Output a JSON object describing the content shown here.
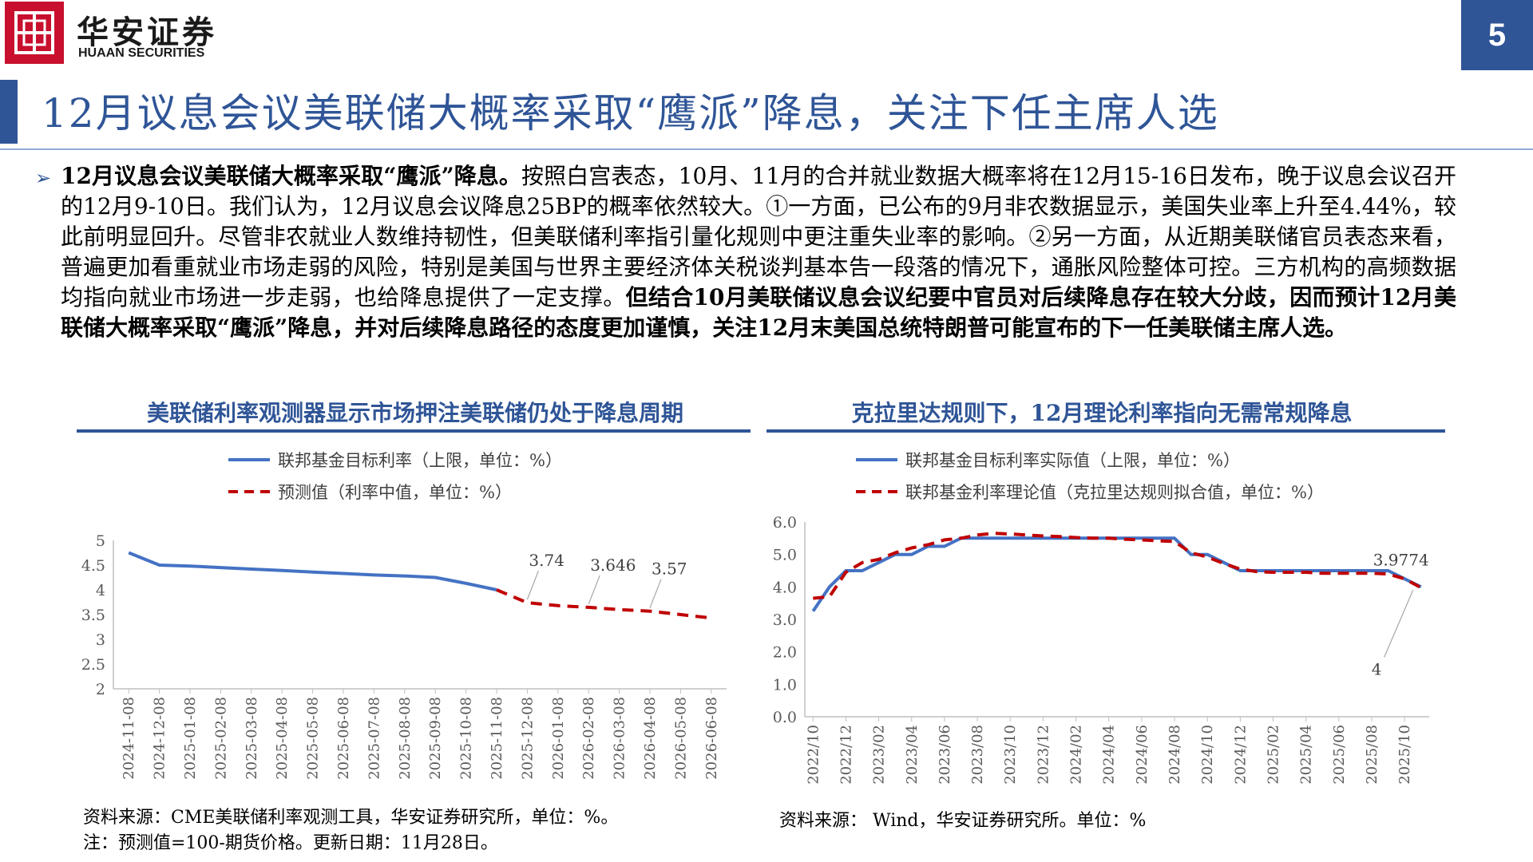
{
  "header": {
    "brand_cn": "华安证券",
    "brand_en": "HUAAN SECURITIES",
    "page_number": "5",
    "title": "12月议息会议美联储大概率采取“鹰派”降息，关注下任主席人选"
  },
  "paragraph": {
    "lead_bold": "12月议息会议美联储大概率采取“鹰派”降息。",
    "body": "按照白宫表态，10月、11月的合并就业数据大概率将在12月15-16日发布，晚于议息会议召开的12月9-10日。我们认为，12月议息会议降息25BP的概率依然较大。①一方面，已公布的9月非农数据显示，美国失业率上升至4.44%，较此前明显回升。尽管非农就业人数维持韧性，但美联储利率指引量化规则中更注重失业率的影响。②另一方面，从近期美联储官员表态来看，普遍更加看重就业市场走弱的风险，特别是美国与世界主要经济体关税谈判基本告一段落的情况下，通胀风险整体可控。三方机构的高频数据均指向就业市场进一步走弱，也给降息提供了一定支撑。",
    "tail_bold": "但结合10月美联储议息会议纪要中官员对后续降息存在较大分歧，因而预计12月美联储大概率采取“鹰派”降息，并对后续降息路径的态度更加谨慎，关注12月末美国总统特朗普可能宣布的下一任美联储主席人选。"
  },
  "left_chart": {
    "heading": "美联储利率观测器显示市场押注美联储仍处于降息周期",
    "source_line1": "资料来源：CME美联储利率观测工具，华安证券研究所，单位：%。",
    "source_line2": "注：预测值=100-期货价格。更新日期：11月28日。"
  },
  "right_chart": {
    "heading": "克拉里达规则下，12月理论利率指向无需常规降息",
    "source_line1": "资料来源： Wind，华安证券研究所。单位：%"
  },
  "chart_data": [
    {
      "type": "line",
      "categories": [
        "2024-11-08",
        "2024-12-08",
        "2025-01-08",
        "2025-02-08",
        "2025-03-08",
        "2025-04-08",
        "2025-05-08",
        "2025-06-08",
        "2025-07-08",
        "2025-08-08",
        "2025-09-08",
        "2025-10-08",
        "2025-11-08",
        "2025-12-08",
        "2026-01-08",
        "2026-02-08",
        "2026-03-08",
        "2026-04-08",
        "2026-05-08",
        "2026-06-08"
      ],
      "series": [
        {
          "name": "联邦基金目标利率（上限，单位：%）",
          "style": "solid",
          "color": "#4472c4",
          "values": [
            4.75,
            4.5,
            4.48,
            4.45,
            4.42,
            4.39,
            4.36,
            4.33,
            4.3,
            4.28,
            4.25,
            4.13,
            4.0,
            null,
            null,
            null,
            null,
            null,
            null,
            null
          ]
        },
        {
          "name": "预测值（利率中值，单位：%）",
          "style": "dashed",
          "color": "#c00000",
          "values": [
            null,
            null,
            null,
            null,
            null,
            null,
            null,
            null,
            null,
            null,
            null,
            null,
            4.0,
            3.74,
            3.68,
            3.646,
            3.6,
            3.57,
            3.5,
            3.43
          ]
        }
      ],
      "annotations": [
        {
          "label": "3.74",
          "index": 13,
          "value": 3.74
        },
        {
          "label": "3.646",
          "index": 15,
          "value": 3.646
        },
        {
          "label": "3.57",
          "index": 17,
          "value": 3.57
        }
      ],
      "y_ticks": [
        "5",
        "4.5",
        "4",
        "3.5",
        "3",
        "2.5",
        "2"
      ],
      "ylim": [
        2,
        5
      ],
      "legend_position": "top-left",
      "grid": false
    },
    {
      "type": "line",
      "categories": [
        "2022/10",
        "2022/11",
        "2022/12",
        "2023/01",
        "2023/02",
        "2023/03",
        "2023/04",
        "2023/05",
        "2023/06",
        "2023/07",
        "2023/08",
        "2023/09",
        "2023/10",
        "2023/11",
        "2023/12",
        "2024/01",
        "2024/02",
        "2024/03",
        "2024/04",
        "2024/05",
        "2024/06",
        "2024/07",
        "2024/08",
        "2024/09",
        "2024/10",
        "2024/11",
        "2024/12",
        "2025/01",
        "2025/02",
        "2025/03",
        "2025/04",
        "2025/05",
        "2025/06",
        "2025/07",
        "2025/08",
        "2025/09",
        "2025/10",
        "2025/11"
      ],
      "tick_labels": [
        "2022/10",
        "2022/12",
        "2023/02",
        "2023/04",
        "2023/06",
        "2023/08",
        "2023/10",
        "2023/12",
        "2024/02",
        "2024/04",
        "2024/06",
        "2024/08",
        "2024/10",
        "2024/12",
        "2025/02",
        "2025/04",
        "2025/06",
        "2025/08",
        "2025/10"
      ],
      "series": [
        {
          "name": "联邦基金目标利率实际值（上限，单位：%）",
          "style": "solid",
          "color": "#4472c4",
          "values": [
            3.25,
            4.0,
            4.5,
            4.5,
            4.75,
            5.0,
            5.0,
            5.25,
            5.25,
            5.5,
            5.5,
            5.5,
            5.5,
            5.5,
            5.5,
            5.5,
            5.5,
            5.5,
            5.5,
            5.5,
            5.5,
            5.5,
            5.5,
            5.0,
            5.0,
            4.75,
            4.5,
            4.5,
            4.5,
            4.5,
            4.5,
            4.5,
            4.5,
            4.5,
            4.5,
            4.5,
            4.25,
            4.0
          ]
        },
        {
          "name": "联邦基金利率理论值（克拉里达规则拟合值，单位：%）",
          "style": "dashed",
          "color": "#c00000",
          "values": [
            3.65,
            3.7,
            4.45,
            4.75,
            4.85,
            5.05,
            5.2,
            5.3,
            5.45,
            5.5,
            5.6,
            5.65,
            5.63,
            5.6,
            5.57,
            5.55,
            5.52,
            5.5,
            5.5,
            5.47,
            5.45,
            5.42,
            5.4,
            5.05,
            4.92,
            4.72,
            4.55,
            4.47,
            4.45,
            4.45,
            4.45,
            4.42,
            4.42,
            4.42,
            4.42,
            4.4,
            4.25,
            3.9774
          ]
        }
      ],
      "annotations": [
        {
          "label": "3.9774",
          "index": 37,
          "series": 1
        },
        {
          "label": "4",
          "index": 37,
          "series": 0
        }
      ],
      "y_ticks": [
        "6.0",
        "5.0",
        "4.0",
        "3.0",
        "2.0",
        "1.0",
        "0.0"
      ],
      "ylim": [
        0,
        6
      ],
      "legend_position": "top-left",
      "grid": false
    }
  ]
}
